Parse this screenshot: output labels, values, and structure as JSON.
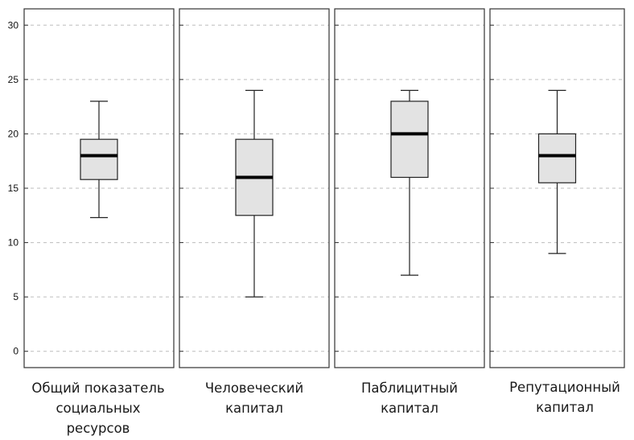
{
  "chart_data": {
    "type": "boxplot",
    "title": "",
    "xlabel": "",
    "ylabel": "",
    "ylim": [
      -1.5,
      31.5
    ],
    "yticks": [
      0,
      5,
      10,
      15,
      20,
      25,
      30
    ],
    "grid": "horizontal-dashed",
    "colors": {
      "box_fill": "#e3e3e3",
      "stroke": "#222222",
      "median": "#000000",
      "grid": "#bdbdbd"
    },
    "categories": [
      "Общий показатель\nсоциальных\nресурсов",
      "Человеческий\nкапитал",
      "Паблицитный\nкапитал",
      "Репутационный\nкапитал"
    ],
    "series": [
      {
        "min": 12.3,
        "q1": 15.8,
        "median": 18,
        "q3": 19.5,
        "max": 23
      },
      {
        "min": 5,
        "q1": 12.5,
        "median": 16,
        "q3": 19.5,
        "max": 24
      },
      {
        "min": 7,
        "q1": 16,
        "median": 20,
        "q3": 23,
        "max": 24
      },
      {
        "min": 9,
        "q1": 15.5,
        "median": 18,
        "q3": 20,
        "max": 24
      }
    ]
  }
}
